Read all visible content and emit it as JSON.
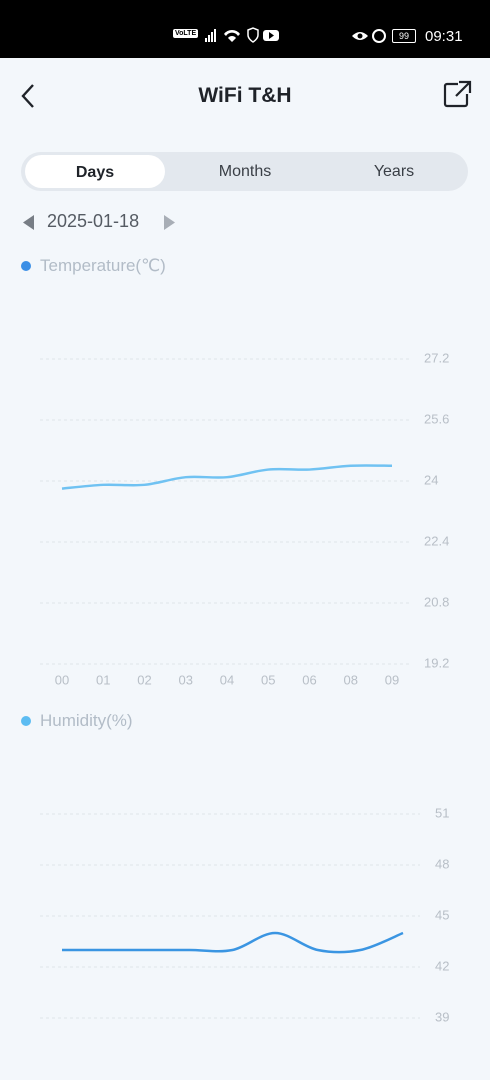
{
  "status_bar": {
    "network": "VoLTE",
    "battery": "99",
    "time": "09:31"
  },
  "header": {
    "title": "WiFi T&H"
  },
  "tabs": [
    "Days",
    "Months",
    "Years"
  ],
  "date": "2025-01-18",
  "chart_data": [
    {
      "type": "line",
      "title": "Temperature(℃)",
      "categories": [
        "00",
        "01",
        "02",
        "03",
        "04",
        "05",
        "06",
        "08",
        "09"
      ],
      "values": [
        23.8,
        23.9,
        23.9,
        24.1,
        24.1,
        24.3,
        24.3,
        24.4,
        24.4
      ],
      "color": "#70c2f2",
      "legend_color": "#3b8fe6",
      "ylim": [
        19.2,
        27.2
      ],
      "yticks": [
        19.2,
        20.8,
        22.4,
        24,
        25.6,
        27.2
      ],
      "grid": true
    },
    {
      "type": "line",
      "title": "Humidity(%)",
      "values": [
        43,
        43,
        43,
        43,
        43,
        44,
        43,
        43,
        44
      ],
      "color": "#3a95e2",
      "legend_color": "#5cbcf2",
      "ylim": [
        39,
        51
      ],
      "yticks": [
        39,
        42,
        45,
        48,
        51
      ],
      "grid": true
    }
  ]
}
